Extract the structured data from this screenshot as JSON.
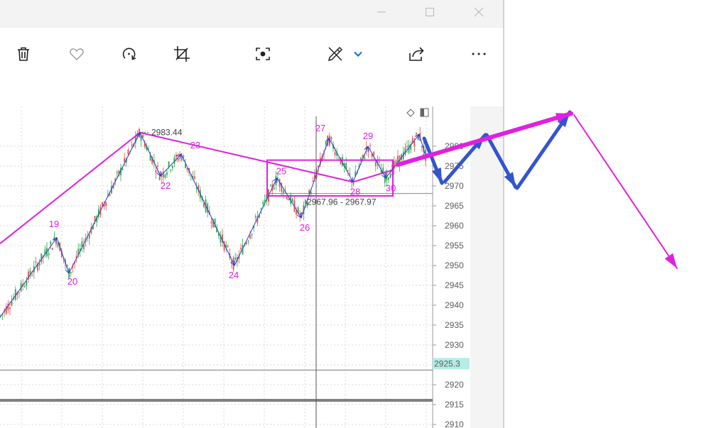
{
  "window": {
    "controls": [
      "minimize-icon",
      "maximize-icon",
      "close-icon"
    ]
  },
  "toolbar": {
    "buttons": [
      "delete-icon",
      "favorite-icon",
      "rotate-icon",
      "crop-icon",
      "visual-search-icon",
      "draw-icon",
      "chevron-down-icon",
      "share-icon",
      "more-icon"
    ],
    "accent_color": "#1a73c8"
  },
  "chart_data": {
    "type": "candlestick",
    "y_ticks": [
      "2910",
      "2915",
      "2920",
      "2925",
      "2930",
      "2935",
      "2940",
      "2945",
      "2950",
      "2955",
      "2960",
      "2965",
      "2970",
      "2975",
      "2980"
    ],
    "y_range": [
      2909,
      2989
    ],
    "current_price_label": "2925.3",
    "current_price": 2925.3,
    "hline_price": 2968.1,
    "peak_label": "2983.44",
    "peak_price": 2983.44,
    "range_label": "2967.96 - 2967.97",
    "wave_labels": [
      {
        "text": "19",
        "at": 2957.5
      },
      {
        "text": "20",
        "at": 2948
      },
      {
        "text": "22",
        "at": 2972.5
      },
      {
        "text": "23",
        "at": 2978
      },
      {
        "text": "24",
        "at": 2950
      },
      {
        "text": "25",
        "at": 2971.5
      },
      {
        "text": "26",
        "at": 2962
      },
      {
        "text": "27",
        "at": 2982
      },
      {
        "text": "28",
        "at": 2971
      },
      {
        "text": "29",
        "at": 2980
      },
      {
        "text": "30",
        "at": 2971.5
      }
    ],
    "zigzag_y": [
      2937,
      2957,
      2948,
      2983.44,
      2972.5,
      2978,
      2950,
      2972,
      2962,
      2982,
      2971,
      2980,
      2972,
      2983,
      2977
    ],
    "colors": {
      "up": "#2ea84f",
      "down": "#e05050",
      "zigzag": "#2d3ecc",
      "wave": "#e020e0",
      "arrow": "#3355cc",
      "projection": "#e020e0"
    }
  }
}
